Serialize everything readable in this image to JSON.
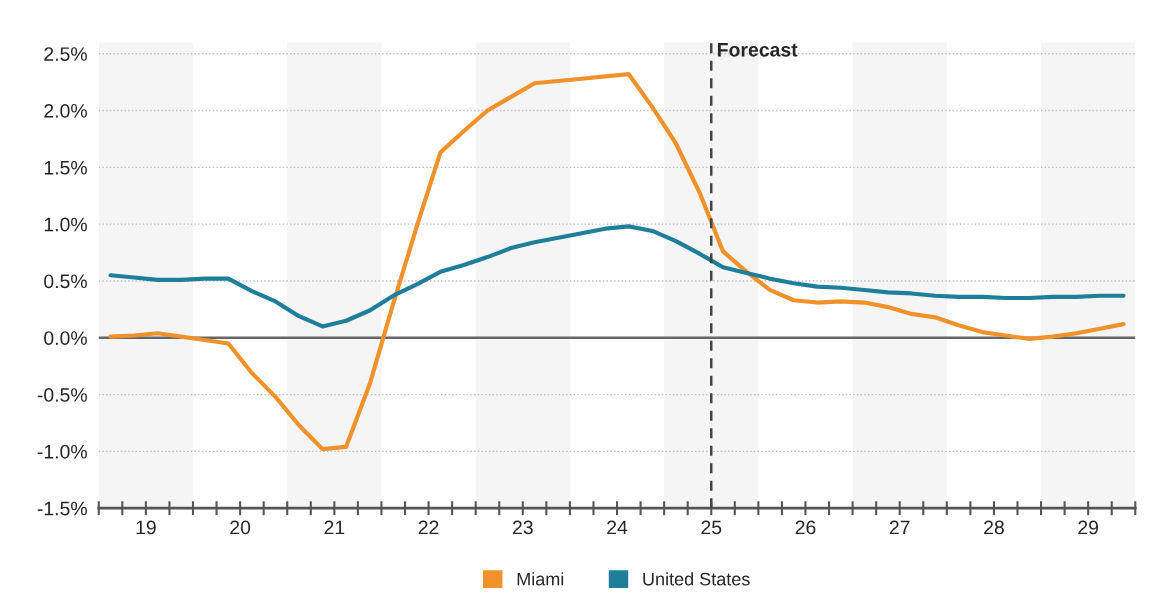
{
  "chart_data": {
    "type": "line",
    "x": [
      19.125,
      19.375,
      19.625,
      19.875,
      20.125,
      20.375,
      20.625,
      20.875,
      21.125,
      21.375,
      21.625,
      21.875,
      22.125,
      22.375,
      22.625,
      22.875,
      23.125,
      23.375,
      23.625,
      23.875,
      24.125,
      24.375,
      24.625,
      24.875,
      25.125,
      25.375,
      25.625,
      25.875,
      26.125,
      26.375,
      26.625,
      26.875,
      27.125,
      27.375,
      27.625,
      27.875,
      28.125,
      28.375,
      28.625,
      28.875,
      29.125,
      29.375,
      29.625,
      29.875
    ],
    "series": [
      {
        "name": "Miami",
        "color": "#f0922b",
        "values": [
          0.01,
          0.02,
          0.04,
          0.01,
          -0.02,
          -0.05,
          -0.31,
          -0.52,
          -0.77,
          -0.98,
          -0.96,
          -0.41,
          0.3,
          0.98,
          1.63,
          1.82,
          2.0,
          2.12,
          2.24,
          2.26,
          2.28,
          2.3,
          2.32,
          2.03,
          1.71,
          1.28,
          0.76,
          0.58,
          0.42,
          0.33,
          0.31,
          0.32,
          0.31,
          0.27,
          0.21,
          0.18,
          0.11,
          0.05,
          0.02,
          -0.01,
          0.01,
          0.04,
          0.08,
          0.12
        ]
      },
      {
        "name": "United States",
        "color": "#1f7f9b",
        "values": [
          0.55,
          0.53,
          0.51,
          0.51,
          0.52,
          0.52,
          0.41,
          0.32,
          0.19,
          0.1,
          0.15,
          0.24,
          0.37,
          0.47,
          0.58,
          0.64,
          0.71,
          0.79,
          0.84,
          0.88,
          0.92,
          0.96,
          0.98,
          0.94,
          0.85,
          0.74,
          0.62,
          0.57,
          0.52,
          0.48,
          0.45,
          0.44,
          0.42,
          0.4,
          0.39,
          0.37,
          0.36,
          0.36,
          0.35,
          0.35,
          0.36,
          0.36,
          0.37,
          0.37
        ]
      }
    ],
    "xlim": [
      19,
      30
    ],
    "xticks": [
      {
        "value": 19,
        "label": null
      },
      {
        "value": 19.25,
        "label": null
      },
      {
        "value": 19.5,
        "label": "19"
      },
      {
        "value": 19.75,
        "label": null
      },
      {
        "value": 20,
        "label": null
      },
      {
        "value": 20.25,
        "label": null
      },
      {
        "value": 20.5,
        "label": "20"
      },
      {
        "value": 20.75,
        "label": null
      },
      {
        "value": 21,
        "label": null
      },
      {
        "value": 21.25,
        "label": null
      },
      {
        "value": 21.5,
        "label": "21"
      },
      {
        "value": 21.75,
        "label": null
      },
      {
        "value": 22,
        "label": null
      },
      {
        "value": 22.25,
        "label": null
      },
      {
        "value": 22.5,
        "label": "22"
      },
      {
        "value": 22.75,
        "label": null
      },
      {
        "value": 23,
        "label": null
      },
      {
        "value": 23.25,
        "label": null
      },
      {
        "value": 23.5,
        "label": "23"
      },
      {
        "value": 23.75,
        "label": null
      },
      {
        "value": 24,
        "label": null
      },
      {
        "value": 24.25,
        "label": null
      },
      {
        "value": 24.5,
        "label": "24"
      },
      {
        "value": 24.75,
        "label": null
      },
      {
        "value": 25,
        "label": null
      },
      {
        "value": 25.25,
        "label": null
      },
      {
        "value": 25.5,
        "label": "25"
      },
      {
        "value": 25.75,
        "label": null
      },
      {
        "value": 26,
        "label": null
      },
      {
        "value": 26.25,
        "label": null
      },
      {
        "value": 26.5,
        "label": "26"
      },
      {
        "value": 26.75,
        "label": null
      },
      {
        "value": 27,
        "label": null
      },
      {
        "value": 27.25,
        "label": null
      },
      {
        "value": 27.5,
        "label": "27"
      },
      {
        "value": 27.75,
        "label": null
      },
      {
        "value": 28,
        "label": null
      },
      {
        "value": 28.25,
        "label": null
      },
      {
        "value": 28.5,
        "label": "28"
      },
      {
        "value": 28.75,
        "label": null
      },
      {
        "value": 29,
        "label": null
      },
      {
        "value": 29.25,
        "label": null
      },
      {
        "value": 29.5,
        "label": "29"
      },
      {
        "value": 29.75,
        "label": null
      },
      {
        "value": 30,
        "label": null
      }
    ],
    "ylim": [
      -1.5,
      2.6
    ],
    "yticks": [
      {
        "value": -1.5,
        "label": "-1.5%"
      },
      {
        "value": -1.0,
        "label": "-1.0%"
      },
      {
        "value": -0.5,
        "label": "-0.5%"
      },
      {
        "value": 0,
        "label": "0.0%"
      },
      {
        "value": 0.5,
        "label": "0.5%"
      },
      {
        "value": 1.0,
        "label": "1.0%"
      },
      {
        "value": 1.5,
        "label": "1.5%"
      },
      {
        "value": 2.0,
        "label": "2.0%"
      },
      {
        "value": 2.5,
        "label": "2.5%"
      }
    ],
    "grid": "y",
    "legend": "bottom",
    "bands": [
      {
        "axis": "x",
        "from": 19,
        "to": 20,
        "color": "#f5f5f5"
      },
      {
        "axis": "x",
        "from": 21,
        "to": 22,
        "color": "#f5f5f5"
      },
      {
        "axis": "x",
        "from": 23,
        "to": 24,
        "color": "#f5f5f5"
      },
      {
        "axis": "x",
        "from": 25,
        "to": 26,
        "color": "#f5f5f5"
      },
      {
        "axis": "x",
        "from": 27,
        "to": 28,
        "color": "#f5f5f5"
      },
      {
        "axis": "x",
        "from": 29,
        "to": 30,
        "color": "#f5f5f5"
      }
    ],
    "ref_lines": [
      {
        "axis": "y",
        "value": 0,
        "color": "#666666",
        "line_style": "solid"
      },
      {
        "axis": "x",
        "value": 25.5,
        "label": "Forecast",
        "color": "#444444",
        "line_style": "dashed"
      }
    ]
  }
}
